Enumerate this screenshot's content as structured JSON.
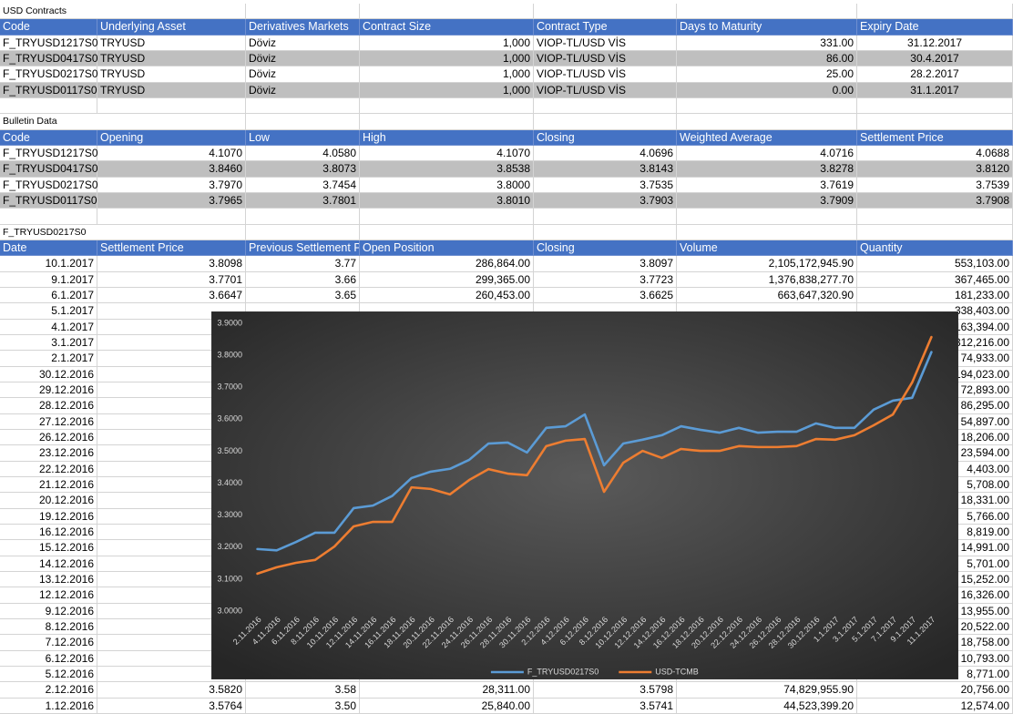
{
  "sheet": {
    "sections": [
      {
        "title": "USD Contracts",
        "columns": [
          "Code",
          "Underlying Asset",
          "Derivatives Markets",
          "Contract Size",
          "Contract Type",
          "Days to Maturity",
          "Expiry Date"
        ],
        "rows": [
          [
            "F_TRYUSD1217S0",
            "TRYUSD",
            "Döviz",
            "1,000",
            "VIOP-TL/USD VİS",
            "331.00",
            "31.12.2017"
          ],
          [
            "F_TRYUSD0417S0",
            "TRYUSD",
            "Döviz",
            "1,000",
            "VIOP-TL/USD VİS",
            "86.00",
            "30.4.2017"
          ],
          [
            "F_TRYUSD0217S0",
            "TRYUSD",
            "Döviz",
            "1,000",
            "VIOP-TL/USD VİS",
            "25.00",
            "28.2.2017"
          ],
          [
            "F_TRYUSD0117S0",
            "TRYUSD",
            "Döviz",
            "1,000",
            "VIOP-TL/USD VİS",
            "0.00",
            "31.1.2017"
          ]
        ]
      },
      {
        "title": "Bulletin Data",
        "columns": [
          "Code",
          "Opening",
          "Low",
          "High",
          "Closing",
          "Weighted Average",
          "Settlement Price"
        ],
        "rows": [
          [
            "F_TRYUSD1217S0",
            "4.1070",
            "4.0580",
            "4.1070",
            "4.0696",
            "4.0716",
            "4.0688"
          ],
          [
            "F_TRYUSD0417S0",
            "3.8460",
            "3.8073",
            "3.8538",
            "3.8143",
            "3.8278",
            "3.8120"
          ],
          [
            "F_TRYUSD0217S0",
            "3.7970",
            "3.7454",
            "3.8000",
            "3.7535",
            "3.7619",
            "3.7539"
          ],
          [
            "F_TRYUSD0117S0",
            "3.7965",
            "3.7801",
            "3.8010",
            "3.7903",
            "3.7909",
            "3.7908"
          ]
        ]
      },
      {
        "title": "F_TRYUSD0217S0",
        "columns": [
          "Date",
          "Settlement Price",
          "Previous Settlement P",
          "Open Position",
          "Closing",
          "Volume",
          "Quantity"
        ],
        "rows": [
          [
            "10.1.2017",
            "3.8098",
            "3.77",
            "286,864.00",
            "3.8097",
            "2,105,172,945.90",
            "553,103.00"
          ],
          [
            "9.1.2017",
            "3.7701",
            "3.66",
            "299,365.00",
            "3.7723",
            "1,376,838,277.70",
            "367,465.00"
          ],
          [
            "6.1.2017",
            "3.6647",
            "3.65",
            "260,453.00",
            "3.6625",
            "663,647,320.90",
            "181,233.00"
          ],
          [
            "5.1.2017",
            null,
            null,
            null,
            null,
            null,
            "338,403.00"
          ],
          [
            "4.1.2017",
            null,
            null,
            null,
            null,
            null,
            "163,394.00"
          ],
          [
            "3.1.2017",
            null,
            null,
            null,
            null,
            null,
            "312,216.00"
          ],
          [
            "2.1.2017",
            null,
            null,
            null,
            null,
            null,
            "74,933.00"
          ],
          [
            "30.12.2016",
            null,
            null,
            null,
            null,
            null,
            "194,023.00"
          ],
          [
            "29.12.2016",
            null,
            null,
            null,
            null,
            null,
            "72,893.00"
          ],
          [
            "28.12.2016",
            null,
            null,
            null,
            null,
            null,
            "86,295.00"
          ],
          [
            "27.12.2016",
            null,
            null,
            null,
            null,
            null,
            "54,897.00"
          ],
          [
            "26.12.2016",
            null,
            null,
            null,
            null,
            null,
            "18,206.00"
          ],
          [
            "23.12.2016",
            null,
            null,
            null,
            null,
            null,
            "23,594.00"
          ],
          [
            "22.12.2016",
            null,
            null,
            null,
            null,
            null,
            "4,403.00"
          ],
          [
            "21.12.2016",
            null,
            null,
            null,
            null,
            null,
            "5,708.00"
          ],
          [
            "20.12.2016",
            null,
            null,
            null,
            null,
            null,
            "18,331.00"
          ],
          [
            "19.12.2016",
            null,
            null,
            null,
            null,
            null,
            "5,766.00"
          ],
          [
            "16.12.2016",
            null,
            null,
            null,
            null,
            null,
            "8,819.00"
          ],
          [
            "15.12.2016",
            null,
            null,
            null,
            null,
            null,
            "14,991.00"
          ],
          [
            "14.12.2016",
            null,
            null,
            null,
            null,
            null,
            "5,701.00"
          ],
          [
            "13.12.2016",
            null,
            null,
            null,
            null,
            null,
            "15,252.00"
          ],
          [
            "12.12.2016",
            null,
            null,
            null,
            null,
            null,
            "16,326.00"
          ],
          [
            "9.12.2016",
            null,
            null,
            null,
            null,
            null,
            "13,955.00"
          ],
          [
            "8.12.2016",
            null,
            null,
            null,
            null,
            null,
            "20,522.00"
          ],
          [
            "7.12.2016",
            null,
            null,
            null,
            null,
            null,
            "18,758.00"
          ],
          [
            "6.12.2016",
            null,
            null,
            null,
            null,
            null,
            "10,793.00"
          ],
          [
            "5.12.2016",
            null,
            null,
            null,
            null,
            null,
            "8,771.00"
          ],
          [
            "2.12.2016",
            "3.5820",
            "3.58",
            "28,311.00",
            "3.5798",
            "74,829,955.90",
            "20,756.00"
          ],
          [
            "1.12.2016",
            "3.5764",
            "3.50",
            "25,840.00",
            "3.5741",
            "44,523,399.20",
            "12,574.00"
          ]
        ]
      }
    ]
  },
  "chart_data": {
    "type": "line",
    "legend": "bottom",
    "categories": [
      "2.11.2016",
      "4.11.2016",
      "6.11.2016",
      "8.11.2016",
      "10.11.2016",
      "12.11.2016",
      "14.11.2016",
      "16.11.2016",
      "18.11.2016",
      "20.11.2016",
      "22.11.2016",
      "24.11.2016",
      "26.11.2016",
      "28.11.2016",
      "30.11.2016",
      "2.12.2016",
      "4.12.2016",
      "6.12.2016",
      "8.12.2016",
      "10.12.2016",
      "12.12.2016",
      "14.12.2016",
      "16.12.2016",
      "18.12.2016",
      "20.12.2016",
      "22.12.2016",
      "24.12.2016",
      "26.12.2016",
      "28.12.2016",
      "30.12.2016",
      "1.1.2017",
      "3.1.2017",
      "5.1.2017",
      "7.1.2017",
      "9.1.2017",
      "11.1.2017"
    ],
    "series": [
      {
        "name": "F_TRYUSD0217S0",
        "color": "#5b9bd5",
        "values": [
          3.194,
          3.19,
          3.216,
          3.245,
          3.245,
          3.322,
          3.33,
          3.36,
          3.416,
          3.436,
          3.445,
          3.473,
          3.524,
          3.527,
          3.496,
          3.573,
          3.578,
          3.615,
          3.456,
          3.524,
          3.536,
          3.55,
          3.578,
          3.567,
          3.558,
          3.573,
          3.558,
          3.561,
          3.561,
          3.587,
          3.573,
          3.573,
          3.63,
          3.658,
          3.667,
          3.81
        ]
      },
      {
        "name": "USD-TCMB",
        "color": "#ed7d31",
        "values": [
          3.117,
          3.137,
          3.151,
          3.16,
          3.202,
          3.265,
          3.279,
          3.279,
          3.387,
          3.382,
          3.365,
          3.41,
          3.444,
          3.43,
          3.425,
          3.516,
          3.533,
          3.538,
          3.373,
          3.464,
          3.501,
          3.479,
          3.507,
          3.501,
          3.501,
          3.516,
          3.513,
          3.513,
          3.516,
          3.538,
          3.536,
          3.55,
          3.581,
          3.615,
          3.715,
          3.857
        ]
      }
    ],
    "ylim": [
      3.0,
      3.9
    ],
    "yticks": [
      {
        "value": 3.0,
        "label": "3.0000"
      },
      {
        "value": 3.1,
        "label": "3.1000"
      },
      {
        "value": 3.2,
        "label": "3.2000"
      },
      {
        "value": 3.3,
        "label": "3.3000"
      },
      {
        "value": 3.4,
        "label": "3.4000"
      },
      {
        "value": 3.5,
        "label": "3.5000"
      },
      {
        "value": 3.6,
        "label": "3.6000"
      },
      {
        "value": 3.7,
        "label": "3.7000"
      },
      {
        "value": 3.8,
        "label": "3.8000"
      },
      {
        "value": 3.9,
        "label": "3.9000"
      }
    ]
  }
}
